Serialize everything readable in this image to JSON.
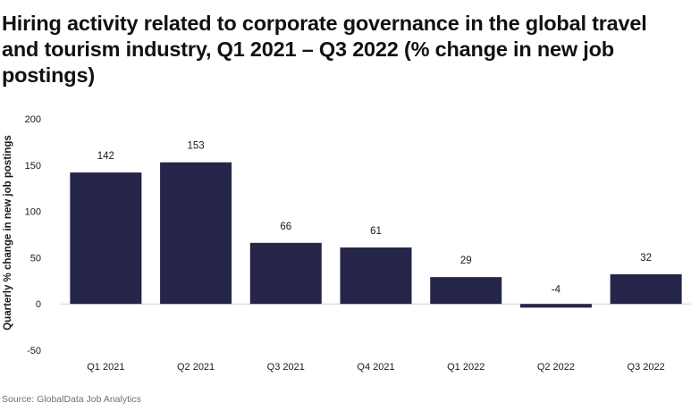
{
  "chart_data": {
    "type": "bar",
    "title": "Hiring activity related to corporate governance in the global travel and tourism industry, Q1 2021 – Q3 2022 (% change in new job postings)",
    "ylabel": "Quarterly % change in new job postings",
    "xlabel": "",
    "categories": [
      "Q1 2021",
      "Q2 2021",
      "Q3 2021",
      "Q4 2021",
      "Q1 2022",
      "Q2 2022",
      "Q3 2022"
    ],
    "values": [
      142,
      153,
      66,
      61,
      29,
      -4,
      32
    ],
    "data_labels": [
      "142",
      "153",
      "66",
      "61",
      "29",
      "-4",
      "32"
    ],
    "ylim": [
      -50,
      200
    ],
    "yticks": [
      -50,
      0,
      50,
      100,
      150,
      200
    ],
    "ytick_labels": [
      "-50",
      "0",
      "50",
      "100",
      "150",
      "200"
    ],
    "grid": false,
    "legend": "none",
    "bar_color": "#25254a"
  },
  "source": "Source: GlobalData Job Analytics"
}
